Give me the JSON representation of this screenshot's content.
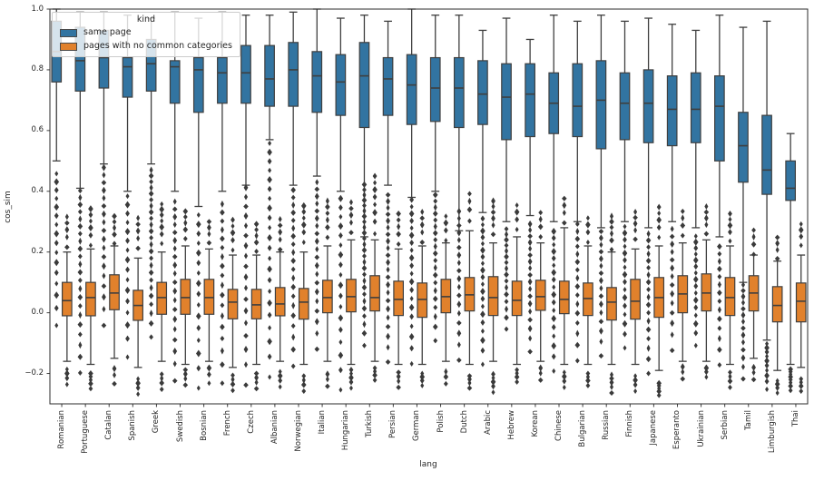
{
  "legend": {
    "title": "kind",
    "items": [
      {
        "label": "same page",
        "color": "#3274a1"
      },
      {
        "label": "pages with no common categories",
        "color": "#e1812c"
      }
    ]
  },
  "chart_data": {
    "type": "boxplot",
    "title": "",
    "xlabel": "lang",
    "ylabel": "cos_sim",
    "hue_label": "kind",
    "ylim": [
      -0.3,
      1.0
    ],
    "yticks": [
      1.0,
      0.8,
      0.6,
      0.4,
      0.2,
      0.0,
      -0.2
    ],
    "ytick_labels": [
      "1.0",
      "0.8",
      "0.6",
      "0.4",
      "0.2",
      "0.0",
      "−0.2"
    ],
    "grid": false,
    "legend_position": "upper left",
    "colors": {
      "box_edge": "#3f3f3f",
      "whisker": "#3f3f3f",
      "flier": "#3a3a3a",
      "spine": "#2b2b2b"
    },
    "categories": [
      "Romanian",
      "Portuguese",
      "Catalan",
      "Spanish",
      "Greek",
      "Swedish",
      "Bosnian",
      "French",
      "Czech",
      "Albanian",
      "Norwegian",
      "Italian",
      "Hungarian",
      "Turkish",
      "Persian",
      "German",
      "Polish",
      "Dutch",
      "Arabic",
      "Hebrew",
      "Korean",
      "Chinese",
      "Bulgarian",
      "Russian",
      "Finnish",
      "Japanese",
      "Esperanto",
      "Ukrainian",
      "Serbian",
      "Tamil",
      "Limburgish",
      "Thai"
    ],
    "box_format": [
      "whisker_low",
      "q1",
      "median",
      "q3",
      "whisker_high"
    ],
    "flier_format": [
      "min",
      "max",
      "count"
    ],
    "series": [
      {
        "name": "same page",
        "color": "#3274a1",
        "boxes": [
          [
            0.5,
            0.76,
            0.86,
            0.96,
            1.0
          ],
          [
            0.41,
            0.73,
            0.83,
            0.94,
            0.99
          ],
          [
            0.49,
            0.74,
            0.84,
            0.93,
            0.99
          ],
          [
            0.4,
            0.71,
            0.81,
            0.84,
            0.98
          ],
          [
            0.49,
            0.73,
            0.82,
            0.9,
            0.97
          ],
          [
            0.4,
            0.69,
            0.81,
            0.83,
            0.99
          ],
          [
            0.35,
            0.66,
            0.8,
            0.84,
            0.97
          ],
          [
            0.4,
            0.69,
            0.79,
            0.84,
            0.99
          ],
          [
            0.42,
            0.69,
            0.79,
            0.88,
            0.98
          ],
          [
            0.57,
            0.68,
            0.77,
            0.88,
            0.98
          ],
          [
            0.42,
            0.68,
            0.8,
            0.89,
            0.99
          ],
          [
            0.45,
            0.66,
            0.78,
            0.86,
            1.0
          ],
          [
            0.4,
            0.65,
            0.76,
            0.85,
            0.97
          ],
          [
            0.25,
            0.61,
            0.78,
            0.89,
            0.98
          ],
          [
            0.42,
            0.65,
            0.77,
            0.84,
            0.96
          ],
          [
            0.38,
            0.62,
            0.75,
            0.85,
            1.0
          ],
          [
            0.4,
            0.63,
            0.74,
            0.84,
            0.98
          ],
          [
            0.27,
            0.61,
            0.74,
            0.84,
            0.98
          ],
          [
            0.33,
            0.62,
            0.72,
            0.83,
            0.93
          ],
          [
            0.3,
            0.57,
            0.71,
            0.82,
            0.97
          ],
          [
            0.32,
            0.58,
            0.72,
            0.82,
            0.9
          ],
          [
            0.3,
            0.59,
            0.69,
            0.79,
            0.98
          ],
          [
            0.3,
            0.58,
            0.68,
            0.82,
            0.96
          ],
          [
            0.28,
            0.54,
            0.7,
            0.83,
            0.98
          ],
          [
            0.3,
            0.57,
            0.69,
            0.79,
            0.96
          ],
          [
            0.28,
            0.56,
            0.69,
            0.8,
            0.97
          ],
          [
            0.3,
            0.55,
            0.67,
            0.78,
            0.95
          ],
          [
            0.28,
            0.56,
            0.67,
            0.79,
            0.93
          ],
          [
            0.25,
            0.5,
            0.68,
            0.78,
            0.98
          ],
          [
            0.1,
            0.43,
            0.55,
            0.66,
            0.94
          ],
          [
            -0.09,
            0.39,
            0.47,
            0.65,
            0.96
          ],
          [
            -0.17,
            0.37,
            0.41,
            0.5,
            0.59
          ]
        ],
        "fliers_low": [
          [
            -0.03,
            0.47,
            16
          ],
          [
            -0.21,
            0.39,
            22
          ],
          [
            -0.05,
            0.47,
            18
          ],
          [
            -0.15,
            0.38,
            16
          ],
          [
            -0.08,
            0.47,
            24
          ],
          [
            -0.22,
            0.37,
            20
          ],
          [
            -0.24,
            0.33,
            16
          ],
          [
            -0.22,
            0.37,
            18
          ],
          [
            -0.25,
            0.4,
            18
          ],
          [
            -0.22,
            0.55,
            22
          ],
          [
            -0.18,
            0.4,
            20
          ],
          [
            -0.12,
            0.43,
            20
          ],
          [
            -0.25,
            0.38,
            18
          ],
          [
            -0.1,
            0.43,
            26
          ],
          [
            -0.15,
            0.4,
            22
          ],
          [
            -0.18,
            0.36,
            20
          ],
          [
            -0.1,
            0.38,
            20
          ],
          [
            -0.16,
            0.33,
            18
          ],
          [
            -0.17,
            0.31,
            20
          ],
          [
            -0.05,
            0.28,
            16
          ],
          [
            -0.12,
            0.3,
            18
          ],
          [
            -0.18,
            0.28,
            18
          ],
          [
            -0.17,
            0.28,
            16
          ],
          [
            -0.15,
            0.26,
            16
          ],
          [
            -0.12,
            0.28,
            16
          ],
          [
            -0.2,
            0.26,
            18
          ],
          [
            -0.12,
            0.28,
            14
          ],
          [
            -0.1,
            0.26,
            16
          ],
          [
            -0.16,
            0.23,
            14
          ],
          [
            -0.23,
            0.08,
            14
          ],
          [
            -0.26,
            -0.11,
            10
          ],
          [
            -0.26,
            -0.19,
            8
          ]
        ],
        "fliers_high": []
      },
      {
        "name": "pages with no common categories",
        "color": "#e1812c",
        "boxes": [
          [
            -0.16,
            -0.01,
            0.04,
            0.1,
            0.2
          ],
          [
            -0.17,
            -0.01,
            0.05,
            0.1,
            0.21
          ],
          [
            -0.15,
            0.01,
            0.065,
            0.125,
            0.22
          ],
          [
            -0.18,
            -0.025,
            0.024,
            0.074,
            0.18
          ],
          [
            -0.16,
            -0.005,
            0.05,
            0.1,
            0.2
          ],
          [
            -0.17,
            -0.005,
            0.05,
            0.11,
            0.22
          ],
          [
            -0.16,
            -0.005,
            0.05,
            0.11,
            0.21
          ],
          [
            -0.18,
            -0.02,
            0.035,
            0.077,
            0.19
          ],
          [
            -0.17,
            -0.02,
            0.026,
            0.077,
            0.19
          ],
          [
            -0.16,
            -0.01,
            0.029,
            0.083,
            0.2
          ],
          [
            -0.17,
            -0.021,
            0.035,
            0.08,
            0.2
          ],
          [
            -0.16,
            0.0,
            0.05,
            0.107,
            0.22
          ],
          [
            -0.17,
            0.003,
            0.053,
            0.11,
            0.24
          ],
          [
            -0.16,
            0.006,
            0.05,
            0.122,
            0.24
          ],
          [
            -0.17,
            -0.009,
            0.044,
            0.104,
            0.21
          ],
          [
            -0.17,
            -0.015,
            0.044,
            0.098,
            0.22
          ],
          [
            -0.16,
            0.0,
            0.053,
            0.11,
            0.23
          ],
          [
            -0.17,
            0.006,
            0.059,
            0.116,
            0.27
          ],
          [
            -0.16,
            -0.009,
            0.05,
            0.119,
            0.23
          ],
          [
            -0.17,
            -0.009,
            0.041,
            0.104,
            0.25
          ],
          [
            -0.16,
            0.008,
            0.053,
            0.107,
            0.23
          ],
          [
            -0.17,
            -0.003,
            0.044,
            0.104,
            0.28
          ],
          [
            -0.17,
            -0.009,
            0.047,
            0.098,
            0.22
          ],
          [
            -0.17,
            -0.024,
            0.035,
            0.083,
            0.2
          ],
          [
            -0.17,
            -0.021,
            0.038,
            0.11,
            0.21
          ],
          [
            -0.19,
            -0.015,
            0.05,
            0.116,
            0.22
          ],
          [
            -0.16,
            0.0,
            0.062,
            0.122,
            0.23
          ],
          [
            -0.16,
            0.006,
            0.065,
            0.128,
            0.24
          ],
          [
            -0.17,
            -0.009,
            0.05,
            0.116,
            0.22
          ],
          [
            -0.15,
            0.006,
            0.065,
            0.122,
            0.19
          ],
          [
            -0.19,
            -0.03,
            0.024,
            0.086,
            0.17
          ],
          [
            -0.18,
            -0.03,
            0.038,
            0.098,
            0.19
          ]
        ],
        "fliers_low": [
          [
            -0.24,
            -0.19,
            4
          ],
          [
            -0.25,
            -0.2,
            5
          ],
          [
            -0.23,
            -0.18,
            3
          ],
          [
            -0.26,
            -0.21,
            4
          ],
          [
            -0.24,
            -0.19,
            4
          ],
          [
            -0.25,
            -0.2,
            4
          ],
          [
            -0.24,
            -0.19,
            3
          ],
          [
            -0.26,
            -0.21,
            4
          ],
          [
            -0.25,
            -0.2,
            4
          ],
          [
            -0.24,
            -0.19,
            4
          ],
          [
            -0.25,
            -0.2,
            4
          ],
          [
            -0.23,
            -0.19,
            3
          ],
          [
            -0.26,
            -0.2,
            5
          ],
          [
            -0.23,
            -0.19,
            4
          ],
          [
            -0.25,
            -0.2,
            4
          ],
          [
            -0.24,
            -0.2,
            4
          ],
          [
            -0.23,
            -0.19,
            3
          ],
          [
            -0.24,
            -0.2,
            4
          ],
          [
            -0.25,
            -0.19,
            5
          ],
          [
            -0.24,
            -0.2,
            4
          ],
          [
            -0.23,
            -0.19,
            3
          ],
          [
            -0.25,
            -0.2,
            4
          ],
          [
            -0.24,
            -0.2,
            4
          ],
          [
            -0.26,
            -0.2,
            5
          ],
          [
            -0.25,
            -0.2,
            4
          ],
          [
            -0.26,
            -0.22,
            5
          ],
          [
            -0.23,
            -0.19,
            3
          ],
          [
            -0.22,
            -0.19,
            3
          ],
          [
            -0.25,
            -0.2,
            4
          ],
          [
            -0.22,
            -0.18,
            3
          ],
          [
            -0.26,
            -0.22,
            4
          ],
          [
            -0.25,
            -0.21,
            4
          ]
        ],
        "fliers_high": [
          [
            0.22,
            0.32,
            5
          ],
          [
            0.23,
            0.35,
            6
          ],
          [
            0.24,
            0.33,
            5
          ],
          [
            0.2,
            0.3,
            5
          ],
          [
            0.22,
            0.35,
            7
          ],
          [
            0.24,
            0.33,
            5
          ],
          [
            0.23,
            0.3,
            4
          ],
          [
            0.21,
            0.31,
            5
          ],
          [
            0.21,
            0.3,
            5
          ],
          [
            0.22,
            0.32,
            5
          ],
          [
            0.22,
            0.34,
            6
          ],
          [
            0.24,
            0.36,
            6
          ],
          [
            0.26,
            0.36,
            5
          ],
          [
            0.26,
            0.45,
            8
          ],
          [
            0.23,
            0.33,
            5
          ],
          [
            0.24,
            0.34,
            5
          ],
          [
            0.25,
            0.33,
            4
          ],
          [
            0.29,
            0.38,
            4
          ],
          [
            0.25,
            0.36,
            6
          ],
          [
            0.27,
            0.35,
            4
          ],
          [
            0.25,
            0.33,
            4
          ],
          [
            0.3,
            0.38,
            4
          ],
          [
            0.24,
            0.32,
            4
          ],
          [
            0.22,
            0.33,
            6
          ],
          [
            0.23,
            0.32,
            5
          ],
          [
            0.24,
            0.34,
            5
          ],
          [
            0.25,
            0.33,
            4
          ],
          [
            0.26,
            0.35,
            5
          ],
          [
            0.24,
            0.33,
            5
          ],
          [
            0.2,
            0.28,
            4
          ],
          [
            0.19,
            0.26,
            4
          ],
          [
            0.21,
            0.28,
            4
          ]
        ]
      }
    ]
  }
}
